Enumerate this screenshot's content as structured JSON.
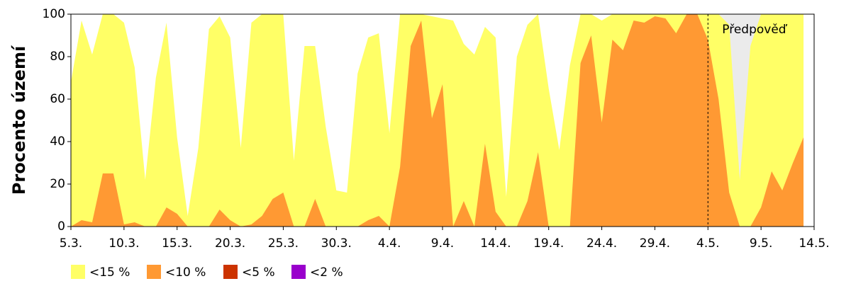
{
  "chart_data": {
    "type": "area",
    "ylabel": "Procento území",
    "categories": [
      "5.3.",
      null,
      null,
      null,
      null,
      "10.3.",
      null,
      null,
      null,
      null,
      "15.3.",
      null,
      null,
      null,
      null,
      "20.3.",
      null,
      null,
      null,
      null,
      "25.3.",
      null,
      null,
      null,
      null,
      "30.3.",
      null,
      null,
      null,
      null,
      "4.4.",
      null,
      null,
      null,
      null,
      "9.4.",
      null,
      null,
      null,
      null,
      "14.4.",
      null,
      null,
      null,
      null,
      "19.4.",
      null,
      null,
      null,
      null,
      "24.4.",
      null,
      null,
      null,
      null,
      "29.4.",
      null,
      null,
      null,
      null,
      "4.5.",
      null,
      null,
      null,
      null,
      "9.5.",
      null,
      null,
      null,
      null,
      "14.5."
    ],
    "series": [
      {
        "name": "<15 %",
        "color": "#ffff66",
        "values": [
          68,
          97,
          81,
          100,
          100,
          96,
          75,
          22,
          70,
          96,
          42,
          5,
          37,
          93,
          99,
          89,
          37,
          96,
          100,
          100,
          100,
          31,
          85,
          85,
          47,
          17,
          16,
          72,
          89,
          91,
          44,
          100,
          100,
          100,
          99,
          98,
          97,
          86,
          81,
          94,
          89,
          14,
          80,
          95,
          100,
          65,
          36,
          76,
          100,
          100,
          97,
          100,
          100,
          100,
          100,
          100,
          100,
          100,
          100,
          100,
          100,
          100,
          95,
          22,
          85,
          100,
          100,
          100,
          100,
          100,
          null
        ]
      },
      {
        "name": "<10 %",
        "color": "#ff9933",
        "values": [
          0,
          3,
          2,
          25,
          25,
          1,
          2,
          0,
          0,
          9,
          6,
          0,
          0,
          0,
          8,
          3,
          0,
          1,
          5,
          13,
          16,
          0,
          0,
          13,
          0,
          0,
          0,
          0,
          3,
          5,
          0,
          28,
          85,
          97,
          51,
          67,
          0,
          12,
          0,
          39,
          7,
          0,
          0,
          12,
          35,
          0,
          0,
          0,
          77,
          90,
          49,
          88,
          83,
          97,
          96,
          99,
          98,
          91,
          100,
          100,
          88,
          60,
          16,
          0,
          0,
          9,
          26,
          17,
          30,
          42,
          null
        ]
      },
      {
        "name": "<5 %",
        "color": "#cc3300",
        "values": [
          0,
          0,
          0,
          0,
          0,
          0,
          0,
          0,
          0,
          0,
          0,
          0,
          0,
          0,
          0,
          0,
          0,
          0,
          0,
          0,
          0,
          0,
          0,
          0,
          0,
          0,
          0,
          0,
          0,
          0,
          0,
          0,
          0,
          0,
          0,
          0,
          0,
          0,
          0,
          0,
          0,
          0,
          0,
          0,
          0,
          0,
          0,
          0,
          0,
          0,
          0,
          0,
          0,
          0,
          0,
          0,
          0,
          0,
          0,
          0,
          0,
          0,
          0,
          0,
          0,
          0,
          0,
          0,
          0,
          0,
          null
        ]
      },
      {
        "name": "<2 %",
        "color": "#9900cc",
        "values": [
          0,
          0,
          0,
          0,
          0,
          0,
          0,
          0,
          0,
          0,
          0,
          0,
          0,
          0,
          0,
          0,
          0,
          0,
          0,
          0,
          0,
          0,
          0,
          0,
          0,
          0,
          0,
          0,
          0,
          0,
          0,
          0,
          0,
          0,
          0,
          0,
          0,
          0,
          0,
          0,
          0,
          0,
          0,
          0,
          0,
          0,
          0,
          0,
          0,
          0,
          0,
          0,
          0,
          0,
          0,
          0,
          0,
          0,
          0,
          0,
          0,
          0,
          0,
          0,
          0,
          0,
          0,
          0,
          0,
          0,
          null
        ]
      }
    ],
    "ylim": [
      0,
      100
    ],
    "yticks": [
      0,
      20,
      40,
      60,
      80,
      100
    ],
    "annotation": {
      "text": "Předpověď",
      "x": 60
    },
    "forecast_color": "#ebebeb"
  }
}
